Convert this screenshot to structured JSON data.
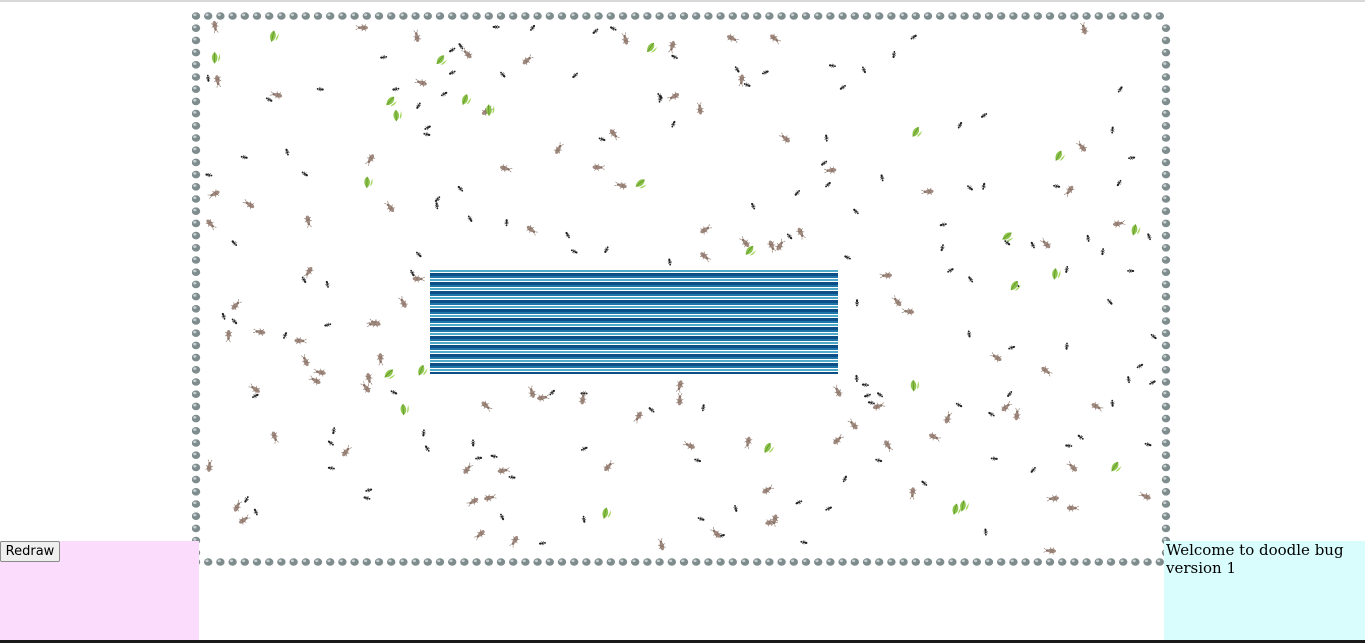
{
  "controls": {
    "redraw_label": "Redraw"
  },
  "info": {
    "welcome_text": "Welcome to doodle bug version 1"
  },
  "colors": {
    "left_panel": "#fcdcfc",
    "right_panel": "#d9fcfc",
    "wall_pebble": "#7f8c8d",
    "ant": "#222222",
    "doodlebug": "#a08a80",
    "plant": "#8bc34a",
    "water_dark": "#0c4f86",
    "water_light": "#4fa9c9"
  },
  "legend_icons": [
    "pebble-wall-icon",
    "ant-icon",
    "doodlebug-icon",
    "plant-icon",
    "water-tile"
  ],
  "world": {
    "ant_count": 140,
    "doodlebug_count": 105,
    "plant_count": 26
  }
}
